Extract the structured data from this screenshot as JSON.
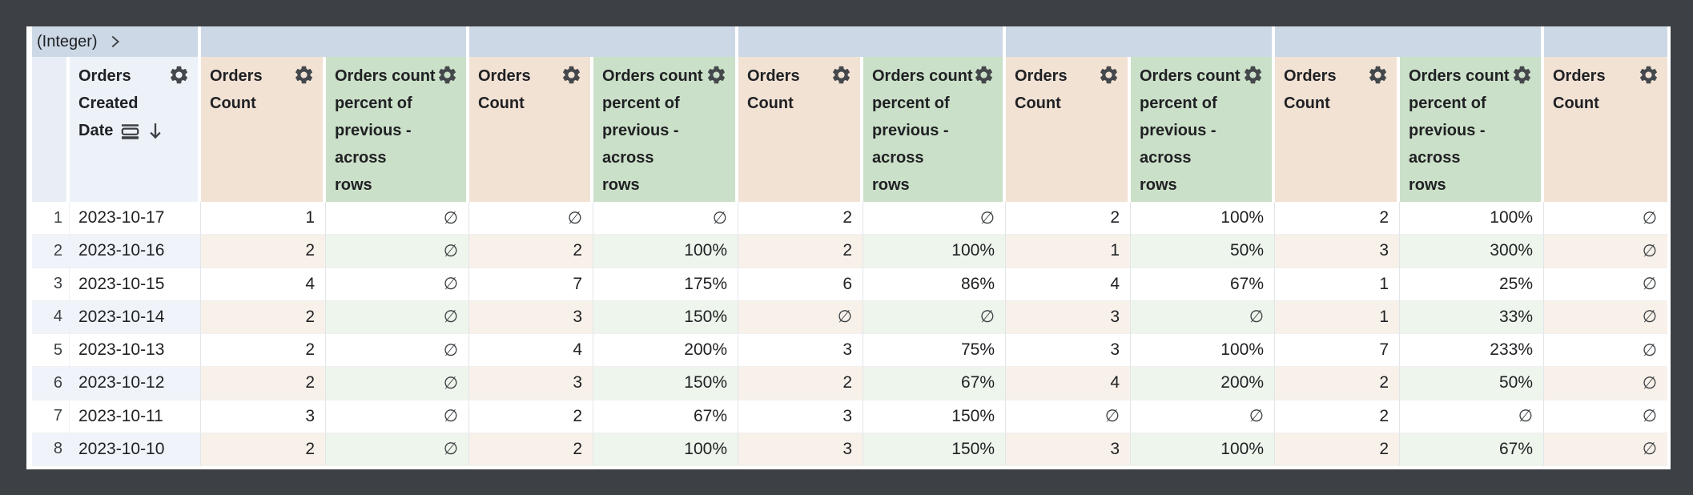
{
  "pivot_band": {
    "field_label": "(Integer)",
    "groups": 6
  },
  "icons": {
    "gear": "settings-gear-icon",
    "chevron": "chevron-right-icon",
    "sort_rows": "date-group-icon",
    "sort_dir": "arrow-down-icon"
  },
  "colors": {
    "frame": "#3d4145",
    "band": "#ccd8e5",
    "dimension_header": "#edf2f9",
    "measure_header": "#f2e2d4",
    "percent_header": "#cbe0c8",
    "stripe_dimension": "#f0f4fa",
    "stripe_measure": "#f8f1ea",
    "stripe_percent": "#eef5ec",
    "text": "#202124"
  },
  "table": {
    "empty_symbol": "∅",
    "columns": [
      {
        "kind": "rownum",
        "label": "",
        "lines": []
      },
      {
        "kind": "dim",
        "label": "Orders Created Date",
        "lines": [
          "Orders",
          "Created",
          "Date"
        ],
        "sorted": "desc"
      },
      {
        "kind": "measure",
        "label": "Orders Count",
        "lines": [
          "Orders",
          "Count"
        ]
      },
      {
        "kind": "pct",
        "label": "Orders count percent of previous - across rows",
        "lines": [
          "Orders count",
          "percent of",
          "previous -",
          "across",
          "rows"
        ]
      },
      {
        "kind": "measure",
        "label": "Orders Count",
        "lines": [
          "Orders",
          "Count"
        ]
      },
      {
        "kind": "pct",
        "label": "Orders count percent of previous - across rows",
        "lines": [
          "Orders count",
          "percent of",
          "previous -",
          "across",
          "rows"
        ]
      },
      {
        "kind": "measure",
        "label": "Orders Count",
        "lines": [
          "Orders",
          "Count"
        ]
      },
      {
        "kind": "pct",
        "label": "Orders count percent of previous - across rows",
        "lines": [
          "Orders count",
          "percent of",
          "previous -",
          "across",
          "rows"
        ]
      },
      {
        "kind": "measure",
        "label": "Orders Count",
        "lines": [
          "Orders",
          "Count"
        ]
      },
      {
        "kind": "pct",
        "label": "Orders count percent of previous - across rows",
        "lines": [
          "Orders count",
          "percent of",
          "previous -",
          "across",
          "rows"
        ]
      },
      {
        "kind": "measure",
        "label": "Orders Count",
        "lines": [
          "Orders",
          "Count"
        ]
      },
      {
        "kind": "pct",
        "label": "Orders count percent of previous - across rows",
        "lines": [
          "Orders count",
          "percent of",
          "previous -",
          "across",
          "rows"
        ]
      },
      {
        "kind": "measure",
        "label": "Orders Count",
        "lines": [
          "Orders",
          "Count"
        ]
      }
    ],
    "rows": [
      {
        "n": "1",
        "date": "2023-10-17",
        "values": [
          "1",
          "∅",
          "∅",
          "∅",
          "2",
          "∅",
          "2",
          "100%",
          "2",
          "100%",
          "∅"
        ]
      },
      {
        "n": "2",
        "date": "2023-10-16",
        "values": [
          "2",
          "∅",
          "2",
          "100%",
          "2",
          "100%",
          "1",
          "50%",
          "3",
          "300%",
          "∅"
        ]
      },
      {
        "n": "3",
        "date": "2023-10-15",
        "values": [
          "4",
          "∅",
          "7",
          "175%",
          "6",
          "86%",
          "4",
          "67%",
          "1",
          "25%",
          "∅"
        ]
      },
      {
        "n": "4",
        "date": "2023-10-14",
        "values": [
          "2",
          "∅",
          "3",
          "150%",
          "∅",
          "∅",
          "3",
          "∅",
          "1",
          "33%",
          "∅"
        ]
      },
      {
        "n": "5",
        "date": "2023-10-13",
        "values": [
          "2",
          "∅",
          "4",
          "200%",
          "3",
          "75%",
          "3",
          "100%",
          "7",
          "233%",
          "∅"
        ]
      },
      {
        "n": "6",
        "date": "2023-10-12",
        "values": [
          "2",
          "∅",
          "3",
          "150%",
          "2",
          "67%",
          "4",
          "200%",
          "2",
          "50%",
          "∅"
        ]
      },
      {
        "n": "7",
        "date": "2023-10-11",
        "values": [
          "3",
          "∅",
          "2",
          "67%",
          "3",
          "150%",
          "∅",
          "∅",
          "2",
          "∅",
          "∅"
        ]
      },
      {
        "n": "8",
        "date": "2023-10-10",
        "values": [
          "2",
          "∅",
          "2",
          "100%",
          "3",
          "150%",
          "3",
          "100%",
          "2",
          "67%",
          "∅"
        ]
      }
    ]
  }
}
